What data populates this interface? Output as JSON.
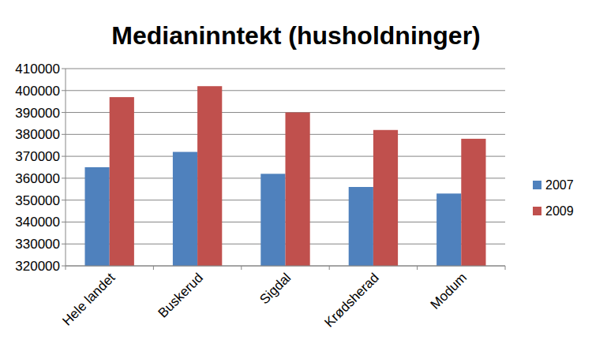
{
  "chart_data": {
    "type": "bar",
    "title": "Medianinntekt (husholdninger)",
    "categories": [
      "Hele landet",
      "Buskerud",
      "Sigdal",
      "Krødsherad",
      "Modum"
    ],
    "series": [
      {
        "name": "2007",
        "color": "#4f81bd",
        "values": [
          365000,
          372000,
          362000,
          356000,
          353000
        ]
      },
      {
        "name": "2009",
        "color": "#c0504d",
        "values": [
          397000,
          402000,
          390000,
          382000,
          378000
        ]
      }
    ],
    "ylim": [
      320000,
      410000
    ],
    "yticks": [
      320000,
      330000,
      340000,
      350000,
      360000,
      370000,
      380000,
      390000,
      400000,
      410000
    ],
    "grid": true,
    "legend": "right"
  }
}
